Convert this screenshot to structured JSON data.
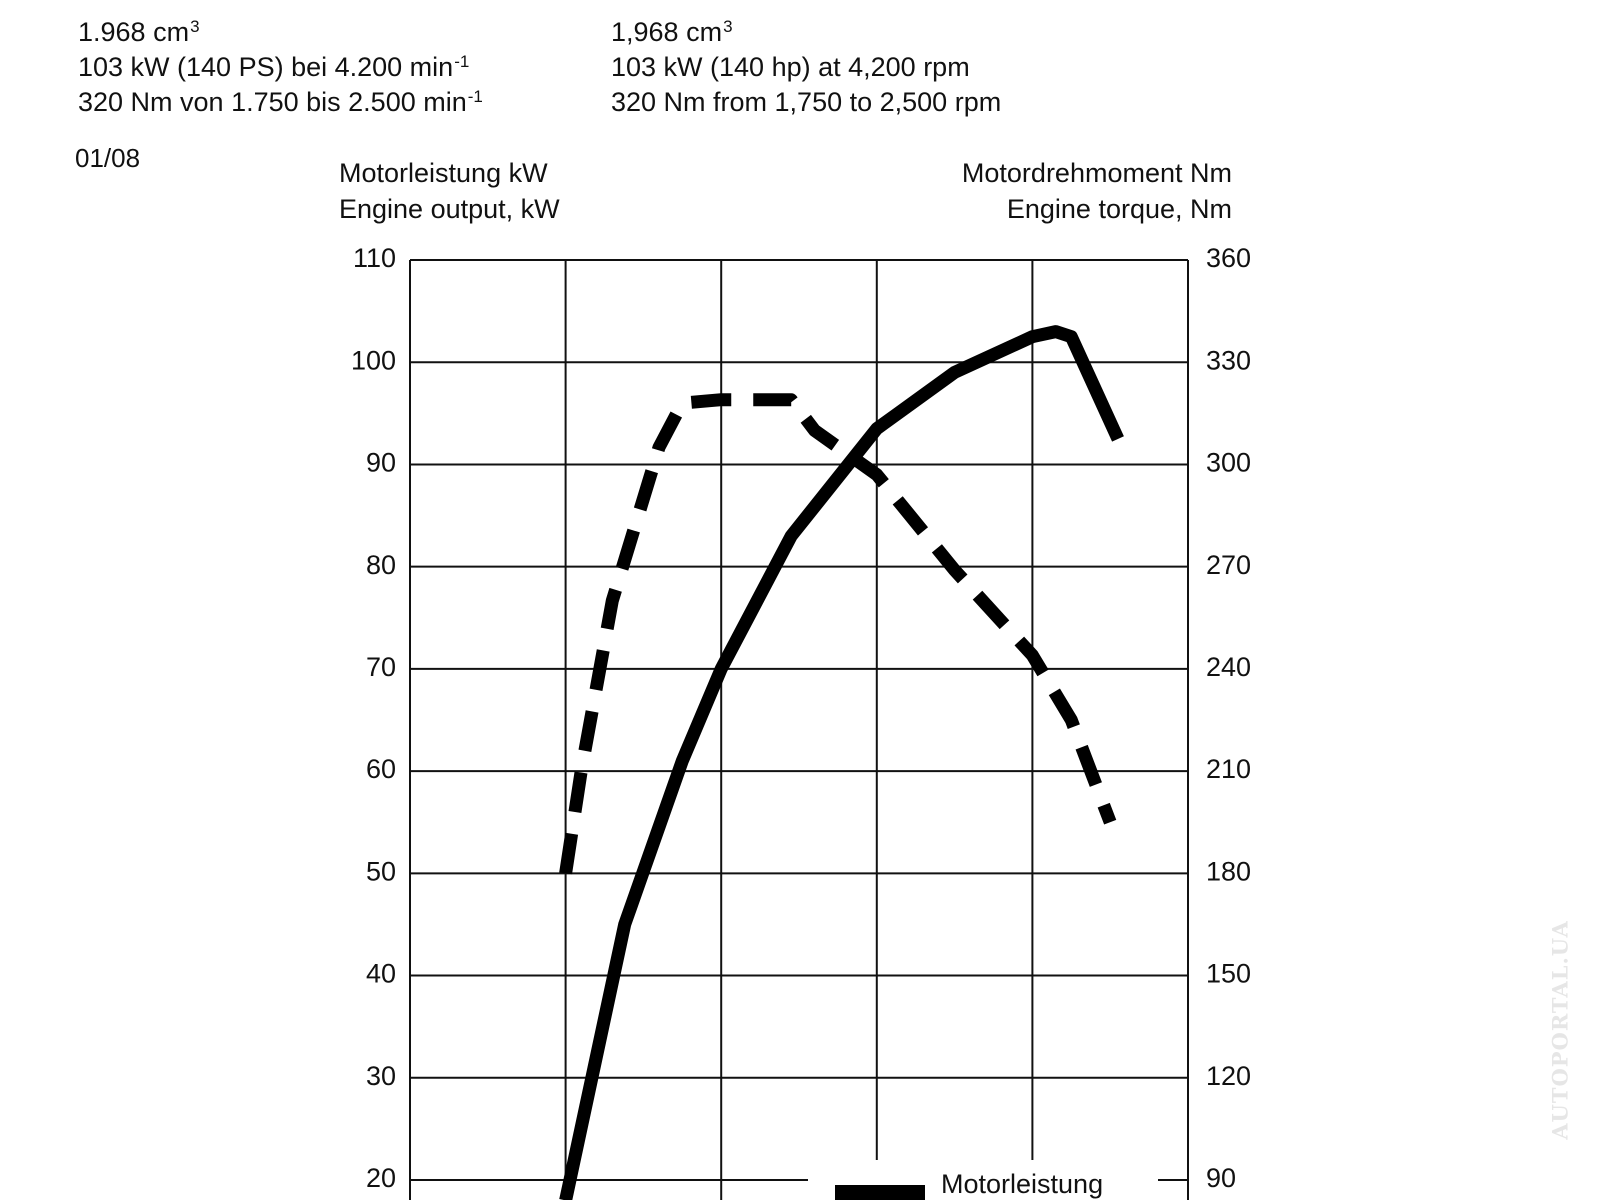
{
  "specs": {
    "german": {
      "displacement": "1.968 cm",
      "displacement_sup": "3",
      "power": "103 kW (140 PS) bei 4.200 min",
      "power_sup": "-1",
      "torque": "320 Nm von 1.750 bis 2.500 min",
      "torque_sup": "-1"
    },
    "english": {
      "displacement": "1,968 cm",
      "displacement_sup": "3",
      "power": "103 kW (140 hp) at 4,200 rpm",
      "torque": "320 Nm from 1,750 to 2,500 rpm"
    },
    "date": "01/08"
  },
  "watermark": "AUTOPORTAL.UA",
  "colors": {
    "line": "#000000",
    "grid": "#111111",
    "background": "#ffffff"
  },
  "chart_data": {
    "type": "line",
    "ylabel_left": [
      "Motorleistung kW",
      "Engine output, kW"
    ],
    "ylabel_right": [
      "Motordrehmoment Nm",
      "Engine torque, Nm"
    ],
    "xlabel": "",
    "ylim_left": [
      20,
      110
    ],
    "ylim_right": [
      90,
      360
    ],
    "left_ticks": [
      110,
      100,
      90,
      80,
      70,
      60,
      50,
      40,
      30,
      20
    ],
    "right_ticks": [
      360,
      330,
      300,
      270,
      240,
      210,
      180,
      150,
      120,
      90
    ],
    "x_gridlines": 5,
    "grid": true,
    "legend": {
      "placement": "bottom-right",
      "entries": [
        "Motorleistung"
      ]
    },
    "series": [
      {
        "name": "Motorleistung",
        "axis": "left",
        "style": "solid",
        "points": [
          [
            0,
            18
          ],
          [
            0.38,
            45
          ],
          [
            0.75,
            61
          ],
          [
            1.0,
            70
          ],
          [
            1.45,
            83
          ],
          [
            2.0,
            93.5
          ],
          [
            2.5,
            99
          ],
          [
            3.0,
            102.5
          ],
          [
            3.15,
            103
          ],
          [
            3.25,
            102.5
          ],
          [
            3.55,
            92.5
          ]
        ]
      },
      {
        "name": "",
        "axis": "right",
        "style": "dashed",
        "points": [
          [
            0,
            180
          ],
          [
            0.1,
            210
          ],
          [
            0.3,
            260
          ],
          [
            0.6,
            305
          ],
          [
            0.75,
            318
          ],
          [
            1.0,
            319
          ],
          [
            1.45,
            319
          ],
          [
            1.6,
            310
          ],
          [
            2.0,
            297
          ],
          [
            2.5,
            269
          ],
          [
            3.0,
            244
          ],
          [
            3.25,
            225
          ],
          [
            3.5,
            195
          ]
        ]
      }
    ]
  }
}
